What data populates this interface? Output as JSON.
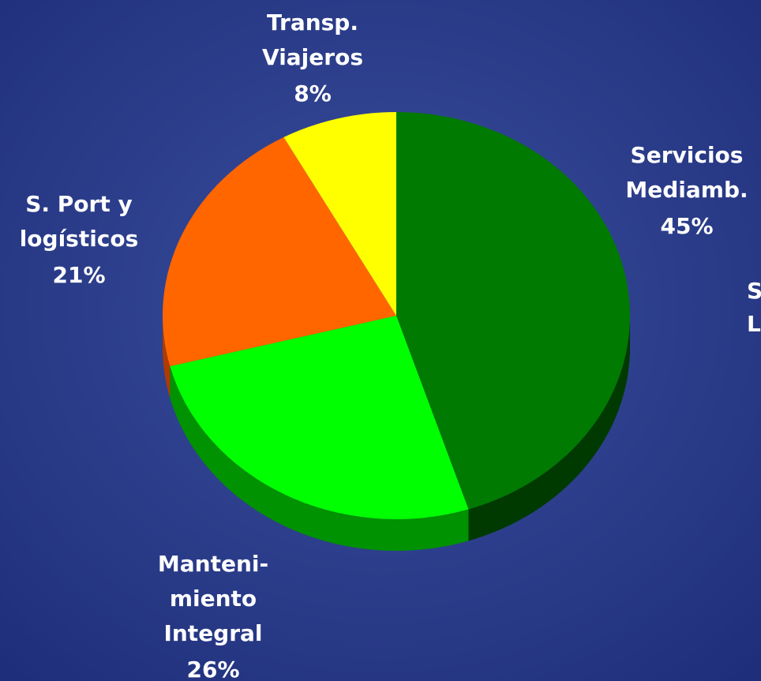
{
  "chart_data": {
    "type": "pie",
    "categories": [
      [
        "Servicios",
        "Mediamb."
      ],
      [
        "Manteni-",
        "miento",
        "Integral"
      ],
      [
        "S. Port y",
        "logísticos"
      ],
      [
        "Transp.",
        "Viajeros"
      ]
    ],
    "values": [
      45,
      26,
      21,
      8
    ],
    "value_labels": [
      "45%",
      "26%",
      "21%",
      "8%"
    ],
    "colors": [
      "#007a00",
      "#00ff00",
      "#ff6600",
      "#ffff00"
    ],
    "side_colors": [
      "#003a00",
      "#009200",
      "#b03a00",
      "#9a9a00"
    ]
  },
  "annotations": [
    "S",
    "Lo"
  ]
}
